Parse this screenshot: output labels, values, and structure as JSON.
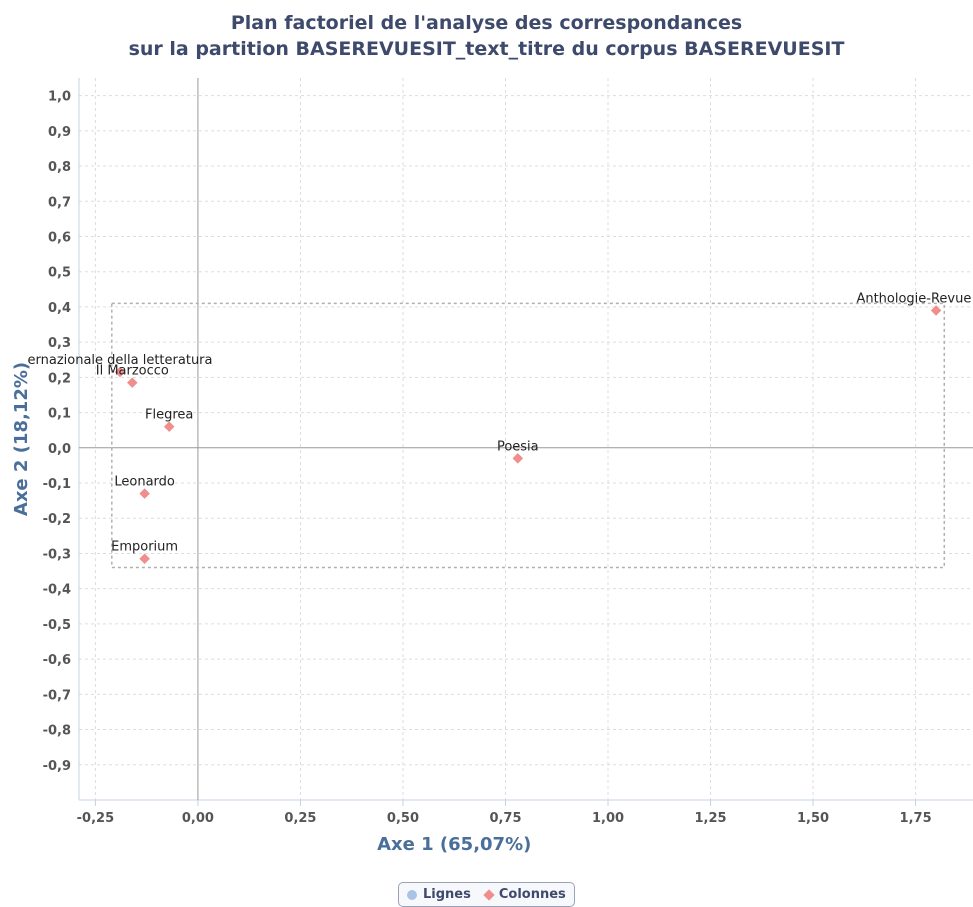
{
  "chart_data": {
    "type": "scatter",
    "title": "Plan factoriel de l'analyse des correspondances",
    "subtitle": "sur la partition BASEREVUESIT_text_titre du corpus BASEREVUESIT",
    "xlabel": "Axe 1 (65,07%)",
    "ylabel": "Axe 2 (18,12%)",
    "xlim": [
      -0.29,
      1.89
    ],
    "ylim": [
      -1.0,
      1.05
    ],
    "x_ticks": [
      -0.25,
      0.0,
      0.25,
      0.5,
      0.75,
      1.0,
      1.25,
      1.5,
      1.75
    ],
    "x_tick_labels": [
      "-0,25",
      "0,00",
      "0,25",
      "0,50",
      "0,75",
      "1,00",
      "1,25",
      "1,50",
      "1,75"
    ],
    "y_ticks": [
      1.0,
      0.9,
      0.8,
      0.7,
      0.6,
      0.5,
      0.4,
      0.3,
      0.2,
      0.1,
      0.0,
      -0.1,
      -0.2,
      -0.3,
      -0.4,
      -0.5,
      -0.6,
      -0.7,
      -0.8,
      -0.9
    ],
    "y_tick_labels": [
      "1,0",
      "0,9",
      "0,8",
      "0,7",
      "0,6",
      "0,5",
      "0,4",
      "0,3",
      "0,2",
      "0,1",
      "0,0",
      "-0,1",
      "-0,2",
      "-0,3",
      "-0,4",
      "-0,5",
      "-0,6",
      "-0,7",
      "-0,8",
      "-0,9"
    ],
    "grid": true,
    "legend_placement": "bottom-center",
    "selection_box": {
      "x": [
        -0.21,
        1.82
      ],
      "y": [
        -0.34,
        0.41
      ]
    },
    "series": [
      {
        "name": "Lignes",
        "marker": "circle",
        "color": "#a9c3e6",
        "points": []
      },
      {
        "name": "Colonnes",
        "marker": "diamond",
        "color": "#f08d8d",
        "points": [
          {
            "label": "Anthologie-Revue de Fra",
            "x": 1.8,
            "y": 0.39
          },
          {
            "label": "ernazionale della letteratura",
            "x": -0.19,
            "y": 0.215
          },
          {
            "label": "Il Marzocco",
            "x": -0.16,
            "y": 0.185
          },
          {
            "label": "Flegrea",
            "x": -0.07,
            "y": 0.06
          },
          {
            "label": "Poesia",
            "x": 0.78,
            "y": -0.03
          },
          {
            "label": "Leonardo",
            "x": -0.13,
            "y": -0.13
          },
          {
            "label": "Emporium",
            "x": -0.13,
            "y": -0.315
          }
        ]
      }
    ]
  },
  "legend": {
    "items": [
      {
        "label": "Lignes"
      },
      {
        "label": "Colonnes"
      }
    ]
  },
  "colors": {
    "title": "#3e4a6b",
    "axis_title": "#4a6f9a",
    "tick_label": "#555555",
    "grid": "#dddddd",
    "axis_line": "#c5d3e6",
    "zero_line": "#999999",
    "selection_box": "#b0b0b0",
    "point": "#f08d8d"
  }
}
